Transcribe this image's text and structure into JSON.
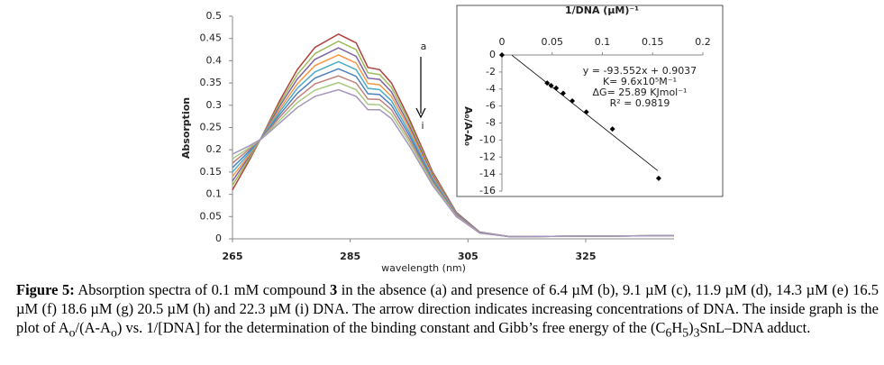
{
  "chart_data": [
    {
      "type": "line",
      "xlabel": "wavelength (nm)",
      "ylabel": "Absorption",
      "x": [
        265,
        268,
        270,
        273,
        276,
        279,
        283,
        286,
        288,
        290,
        292,
        295,
        299,
        303,
        307,
        312,
        340
      ],
      "xlim": [
        265,
        340
      ],
      "xticks": [
        265,
        285,
        305,
        325
      ],
      "ylim": [
        0,
        0.5
      ],
      "yticks": [
        0,
        0.05,
        0.1,
        0.15,
        0.2,
        0.25,
        0.3,
        0.35,
        0.4,
        0.45,
        0.5
      ],
      "annotations": [
        "a",
        "i"
      ],
      "series": [
        {
          "color": "#b0413e",
          "values": [
            0.11,
            0.18,
            0.23,
            0.31,
            0.38,
            0.43,
            0.46,
            0.44,
            0.385,
            0.38,
            0.35,
            0.27,
            0.15,
            0.06,
            0.015,
            0.005,
            0.007
          ]
        },
        {
          "color": "#9bbb59",
          "values": [
            0.12,
            0.184,
            0.229,
            0.304,
            0.369,
            0.416,
            0.444,
            0.425,
            0.373,
            0.369,
            0.34,
            0.263,
            0.146,
            0.059,
            0.015,
            0.005,
            0.007
          ]
        },
        {
          "color": "#8064a2",
          "values": [
            0.13,
            0.188,
            0.229,
            0.298,
            0.359,
            0.403,
            0.429,
            0.41,
            0.361,
            0.358,
            0.33,
            0.255,
            0.143,
            0.058,
            0.015,
            0.005,
            0.007
          ]
        },
        {
          "color": "#f79646",
          "values": [
            0.14,
            0.191,
            0.228,
            0.291,
            0.348,
            0.389,
            0.413,
            0.395,
            0.349,
            0.346,
            0.32,
            0.248,
            0.139,
            0.056,
            0.014,
            0.005,
            0.007
          ]
        },
        {
          "color": "#4bacc6",
          "values": [
            0.15,
            0.195,
            0.228,
            0.285,
            0.338,
            0.375,
            0.398,
            0.38,
            0.338,
            0.335,
            0.31,
            0.24,
            0.135,
            0.055,
            0.014,
            0.005,
            0.007
          ]
        },
        {
          "color": "#4f81bd",
          "values": [
            0.16,
            0.199,
            0.227,
            0.279,
            0.327,
            0.361,
            0.382,
            0.365,
            0.326,
            0.324,
            0.3,
            0.233,
            0.131,
            0.054,
            0.014,
            0.005,
            0.007
          ]
        },
        {
          "color": "#c0807e",
          "values": [
            0.17,
            0.203,
            0.226,
            0.273,
            0.316,
            0.348,
            0.366,
            0.35,
            0.314,
            0.313,
            0.29,
            0.225,
            0.128,
            0.053,
            0.014,
            0.005,
            0.007
          ]
        },
        {
          "color": "#a9c97f",
          "values": [
            0.18,
            0.206,
            0.226,
            0.266,
            0.306,
            0.334,
            0.351,
            0.335,
            0.302,
            0.301,
            0.28,
            0.218,
            0.124,
            0.051,
            0.013,
            0.005,
            0.007
          ]
        },
        {
          "color": "#a595bd",
          "values": [
            0.19,
            0.21,
            0.225,
            0.26,
            0.295,
            0.32,
            0.335,
            0.32,
            0.29,
            0.29,
            0.27,
            0.21,
            0.12,
            0.05,
            0.013,
            0.005,
            0.007
          ]
        }
      ]
    },
    {
      "type": "scatter",
      "title": "1/DNA (µM)⁻¹",
      "ylabel": "A₀/A-A₀",
      "x": [
        0,
        0.045,
        0.049,
        0.054,
        0.061,
        0.07,
        0.084,
        0.11,
        0.156
      ],
      "values": [
        0,
        -3.3,
        -3.6,
        -3.9,
        -4.5,
        -5.4,
        -6.7,
        -8.7,
        -14.5
      ],
      "color": "#000000",
      "xlim": [
        0,
        0.2
      ],
      "xticks": [
        0,
        0.05,
        0.1,
        0.15,
        0.2
      ],
      "ylim": [
        -16,
        0
      ],
      "yticks": [
        0,
        -2,
        -4,
        -6,
        -8,
        -10,
        -12,
        -14,
        -16
      ],
      "trendline": {
        "x": [
          0.01,
          0.155
        ],
        "values": [
          -0.03,
          -13.6
        ]
      },
      "annotations": [
        "y = -93.552x + 0.9037",
        "K= 9.6x10⁵M⁻¹",
        "ΔG= 25.89 KJmol⁻¹",
        "R² = 0.9819"
      ]
    }
  ],
  "caption": {
    "parts": [
      {
        "text": "Figure 5:",
        "format": "bold"
      },
      {
        "text": " Absorption spectra of 0.1 mM compound ",
        "format": "normal"
      },
      {
        "text": "3",
        "format": "bold"
      },
      {
        "text": " in the absence (a) and presence of 6.4 µM (b), 9.1 µM (c), 11.9 µM (d), 14.3 µM (e) 16.5 µM (f) 18.6 µM (g) 20.5 µM (h) and 22.3 µM (i) DNA. The arrow direction indicates increasing concentrations of DNA. The inside graph is the plot of A",
        "format": "normal"
      },
      {
        "text": "o",
        "format": "sub"
      },
      {
        "text": "/(A-A",
        "format": "normal"
      },
      {
        "text": "o",
        "format": "sub"
      },
      {
        "text": ") vs. 1/[DNA] for the determination of the binding constant and Gibb’s free energy of the (C",
        "format": "normal"
      },
      {
        "text": "6",
        "format": "sub"
      },
      {
        "text": "H",
        "format": "normal"
      },
      {
        "text": "5",
        "format": "sub"
      },
      {
        "text": ")",
        "format": "normal"
      },
      {
        "text": "3",
        "format": "sub"
      },
      {
        "text": "SnL–DNA adduct.",
        "format": "normal"
      }
    ]
  }
}
